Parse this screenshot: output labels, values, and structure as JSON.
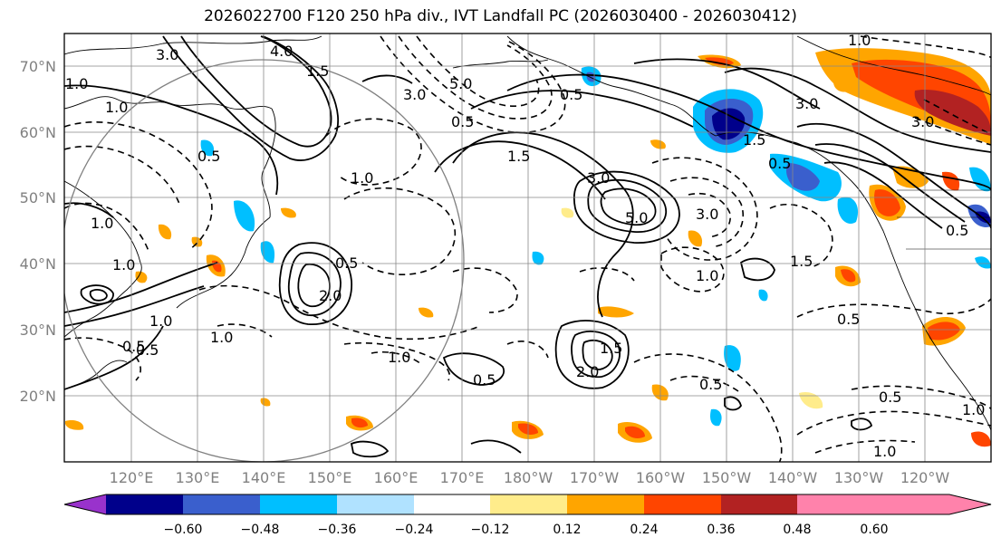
{
  "title": "2026022700 F120 250 hPa div., IVT Landfall PC (2026030400 - 2026030412)",
  "map": {
    "lat_labels": [
      "70°N",
      "60°N",
      "50°N",
      "40°N",
      "30°N",
      "20°N"
    ],
    "lon_labels": [
      "120°E",
      "130°E",
      "140°E",
      "150°E",
      "160°E",
      "170°E",
      "180°W",
      "170°W",
      "160°W",
      "150°W",
      "140°W",
      "130°W",
      "120°W"
    ],
    "contour_labels": [
      {
        "text": "3.0"
      },
      {
        "text": "4.0"
      },
      {
        "text": "1.0"
      },
      {
        "text": "0.5"
      },
      {
        "text": "1.0"
      },
      {
        "text": "1.5"
      },
      {
        "text": "1.0"
      },
      {
        "text": "3.0"
      },
      {
        "text": "5.0"
      },
      {
        "text": "0.5"
      },
      {
        "text": "1.5"
      },
      {
        "text": "3.0"
      },
      {
        "text": "5.0"
      },
      {
        "text": "3.0"
      },
      {
        "text": "1.0"
      },
      {
        "text": "0.5"
      },
      {
        "text": "2.0"
      },
      {
        "text": "0.5"
      },
      {
        "text": "1.0"
      },
      {
        "text": "1.0"
      },
      {
        "text": "1.5"
      },
      {
        "text": "0.5"
      },
      {
        "text": "1.0"
      },
      {
        "text": "1.0"
      },
      {
        "text": "0.5"
      },
      {
        "text": "2.0"
      },
      {
        "text": "1.5"
      },
      {
        "text": "1.0"
      },
      {
        "text": "0.5"
      },
      {
        "text": "0.5"
      },
      {
        "text": "1.0"
      },
      {
        "text": "0.5"
      },
      {
        "text": "1.5"
      },
      {
        "text": "3.0"
      },
      {
        "text": "0.5"
      },
      {
        "text": "3.0"
      },
      {
        "text": "1.0"
      },
      {
        "text": "0.5"
      },
      {
        "text": "1.0"
      },
      {
        "text": "0.5"
      }
    ]
  },
  "colorbar": {
    "ticks": [
      "−0.60",
      "−0.48",
      "−0.36",
      "−0.24",
      "−0.12",
      "0.12",
      "0.24",
      "0.36",
      "0.48",
      "0.60"
    ],
    "colors": [
      "#9932cc",
      "#00008b",
      "#3a5fcd",
      "#00bfff",
      "#b0e2ff",
      "#ffffff",
      "#ffec8b",
      "#ffa500",
      "#ff4500",
      "#b22222",
      "#ff82ab"
    ]
  },
  "legend_circle": {
    "color": "#808080"
  }
}
